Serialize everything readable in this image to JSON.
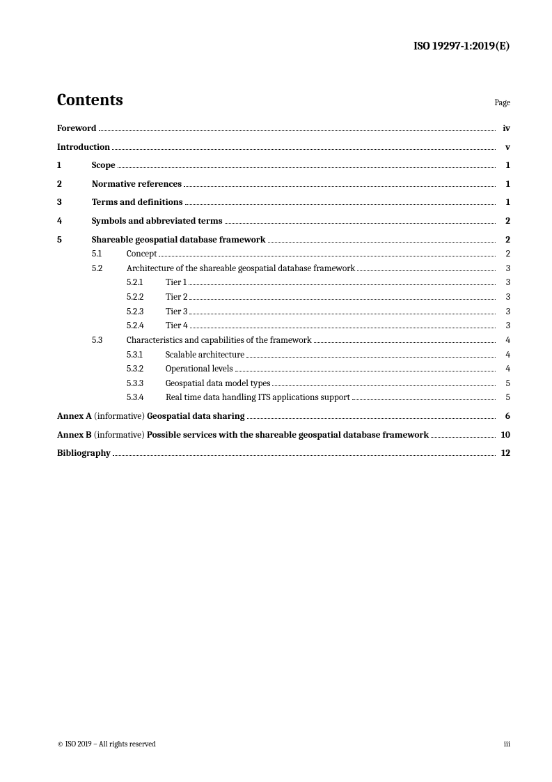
{
  "doc_id": "ISO 19297-1:2019(E)",
  "contents_title": "Contents",
  "page_label": "Page",
  "toc": {
    "foreword": {
      "title": "Foreword",
      "page": "iv"
    },
    "introduction": {
      "title": "Introduction",
      "page": "v"
    },
    "sections": [
      {
        "num": "1",
        "title": "Scope",
        "page": "1"
      },
      {
        "num": "2",
        "title": "Normative references",
        "page": "1"
      },
      {
        "num": "3",
        "title": "Terms and definitions",
        "page": "1"
      },
      {
        "num": "4",
        "title": "Symbols and abbreviated terms",
        "page": "2"
      },
      {
        "num": "5",
        "title": "Shareable geospatial database framework",
        "page": "2",
        "subs": [
          {
            "num": "5.1",
            "title": "Concept",
            "page": "2"
          },
          {
            "num": "5.2",
            "title": "Architecture of the shareable geospatial database framework",
            "page": "3",
            "subs": [
              {
                "num": "5.2.1",
                "title": "Tier 1",
                "page": "3"
              },
              {
                "num": "5.2.2",
                "title": "Tier 2",
                "page": "3"
              },
              {
                "num": "5.2.3",
                "title": "Tier 3",
                "page": "3"
              },
              {
                "num": "5.2.4",
                "title": "Tier 4",
                "page": "3"
              }
            ]
          },
          {
            "num": "5.3",
            "title": "Characteristics and capabilities of the framework",
            "page": "4",
            "subs": [
              {
                "num": "5.3.1",
                "title": "Scalable architecture",
                "page": "4"
              },
              {
                "num": "5.3.2",
                "title": "Operational levels",
                "page": "4"
              },
              {
                "num": "5.3.3",
                "title": "Geospatial data model types",
                "page": "5"
              },
              {
                "num": "5.3.4",
                "title": "Real time data handling ITS applications support",
                "page": "5"
              }
            ]
          }
        ]
      }
    ],
    "annexes": [
      {
        "prefix": "Annex A",
        "note": "(informative)",
        "title": "Geospatial data sharing",
        "page": "6"
      },
      {
        "prefix": "Annex B",
        "note": "(informative)",
        "title": "Possible services with the shareable geospatial database framework",
        "page": "10"
      }
    ],
    "bibliography": {
      "title": "Bibliography",
      "page": "12"
    }
  },
  "footer": {
    "copyright": "© ISO 2019 – All rights reserved",
    "pagenum": "iii"
  }
}
